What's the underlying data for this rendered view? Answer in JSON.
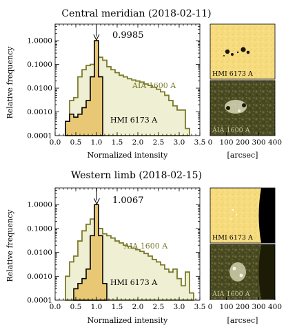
{
  "chart_data": [
    {
      "type": "histogram",
      "title": "Central meridian (2018-02-11)",
      "xlabel": "Normalized intensity",
      "ylabel": "Relative frequency",
      "xlim": [
        0.0,
        3.5
      ],
      "ylim": [
        0.0001,
        5
      ],
      "yscale": "log",
      "xticks": [
        "0.0",
        "0.5",
        "1.0",
        "1.5",
        "2.0",
        "2.5",
        "3.0",
        "3.5"
      ],
      "yticks": [
        "0.0001",
        "0.0010",
        "0.0100",
        "0.1000",
        "1.0000"
      ],
      "annotation": "0.9985",
      "arrow_x": 0.9985,
      "series": [
        {
          "name": "AIA 1600 A",
          "color": "#7a7a2a",
          "fill": "#efefd4",
          "bins": [
            [
              0.25,
              0.35,
              0.0002
            ],
            [
              0.35,
              0.45,
              0.003
            ],
            [
              0.45,
              0.55,
              0.004
            ],
            [
              0.55,
              0.65,
              0.03
            ],
            [
              0.65,
              0.75,
              0.06
            ],
            [
              0.75,
              0.85,
              0.09
            ],
            [
              0.85,
              0.95,
              0.1
            ],
            [
              0.95,
              1.05,
              0.16
            ],
            [
              1.05,
              1.15,
              0.2
            ],
            [
              1.15,
              1.25,
              0.15
            ],
            [
              1.25,
              1.35,
              0.08
            ],
            [
              1.35,
              1.45,
              0.06
            ],
            [
              1.45,
              1.55,
              0.045
            ],
            [
              1.55,
              1.65,
              0.035
            ],
            [
              1.65,
              1.75,
              0.03
            ],
            [
              1.75,
              1.85,
              0.025
            ],
            [
              1.85,
              1.95,
              0.022
            ],
            [
              1.95,
              2.05,
              0.02
            ],
            [
              2.05,
              2.15,
              0.018
            ],
            [
              2.15,
              2.25,
              0.015
            ],
            [
              2.25,
              2.35,
              0.013
            ],
            [
              2.35,
              2.45,
              0.011
            ],
            [
              2.45,
              2.55,
              0.009
            ],
            [
              2.55,
              2.65,
              0.007
            ],
            [
              2.65,
              2.75,
              0.005
            ],
            [
              2.75,
              2.85,
              0.003
            ],
            [
              2.85,
              2.95,
              0.0018
            ],
            [
              2.95,
              3.05,
              0.0012
            ],
            [
              3.05,
              3.15,
              0.0012
            ],
            [
              3.15,
              3.25,
              0.0002
            ]
          ]
        },
        {
          "name": "HMI 6173 A",
          "color": "#000000",
          "fill": "#e8c874",
          "bins": [
            [
              0.25,
              0.35,
              0.0004
            ],
            [
              0.35,
              0.45,
              0.0008
            ],
            [
              0.45,
              0.55,
              0.0006
            ],
            [
              0.55,
              0.65,
              0.0008
            ],
            [
              0.65,
              0.75,
              0.0015
            ],
            [
              0.75,
              0.85,
              0.003
            ],
            [
              0.85,
              0.95,
              0.03
            ],
            [
              0.95,
              1.05,
              1.0
            ],
            [
              1.05,
              1.15,
              0.03
            ]
          ]
        }
      ]
    },
    {
      "type": "histogram",
      "title": "Western limb (2018-02-15)",
      "xlabel": "Normalized intensity",
      "ylabel": "Relative frequency",
      "xlim": [
        0.0,
        3.5
      ],
      "ylim": [
        0.0001,
        5
      ],
      "yscale": "log",
      "xticks": [
        "0.0",
        "0.5",
        "1.0",
        "1.5",
        "2.0",
        "2.5",
        "3.0",
        "3.5"
      ],
      "yticks": [
        "0.0001",
        "0.0010",
        "0.0100",
        "0.1000",
        "1.0000"
      ],
      "annotation": "1.0067",
      "arrow_x": 1.0067,
      "series": [
        {
          "name": "AIA 1600 A",
          "color": "#7a7a2a",
          "fill": "#efefd4",
          "bins": [
            [
              0.25,
              0.35,
              0.001
            ],
            [
              0.35,
              0.45,
              0.004
            ],
            [
              0.45,
              0.55,
              0.007
            ],
            [
              0.55,
              0.65,
              0.03
            ],
            [
              0.65,
              0.75,
              0.08
            ],
            [
              0.75,
              0.85,
              0.15
            ],
            [
              0.85,
              0.95,
              0.25
            ],
            [
              0.95,
              1.05,
              0.18
            ],
            [
              1.05,
              1.15,
              0.1
            ],
            [
              1.15,
              1.25,
              0.06
            ],
            [
              1.25,
              1.35,
              0.05
            ],
            [
              1.35,
              1.45,
              0.04
            ],
            [
              1.45,
              1.55,
              0.03
            ],
            [
              1.55,
              1.65,
              0.025
            ],
            [
              1.65,
              1.75,
              0.02
            ],
            [
              1.75,
              1.85,
              0.018
            ],
            [
              1.85,
              1.95,
              0.015
            ],
            [
              1.95,
              2.05,
              0.013
            ],
            [
              2.05,
              2.15,
              0.011
            ],
            [
              2.15,
              2.25,
              0.009
            ],
            [
              2.25,
              2.35,
              0.007
            ],
            [
              2.35,
              2.45,
              0.005
            ],
            [
              2.45,
              2.55,
              0.004
            ],
            [
              2.55,
              2.65,
              0.003
            ],
            [
              2.65,
              2.75,
              0.002
            ],
            [
              2.75,
              2.85,
              0.0015
            ],
            [
              2.85,
              2.95,
              0.002
            ],
            [
              2.95,
              3.05,
              0.0008
            ],
            [
              3.05,
              3.15,
              0.0004
            ],
            [
              3.15,
              3.25,
              0.0015
            ],
            [
              3.25,
              3.35,
              0.0002
            ]
          ]
        },
        {
          "name": "HMI 6173 A",
          "color": "#000000",
          "fill": "#e8c874",
          "bins": [
            [
              0.45,
              0.55,
              0.0003
            ],
            [
              0.55,
              0.65,
              0.0005
            ],
            [
              0.65,
              0.75,
              0.0008
            ],
            [
              0.75,
              0.85,
              0.002
            ],
            [
              0.85,
              0.95,
              0.05
            ],
            [
              0.95,
              1.05,
              1.0
            ],
            [
              1.05,
              1.15,
              0.05
            ],
            [
              1.15,
              1.25,
              0.0005
            ]
          ]
        }
      ]
    }
  ],
  "images": {
    "xticks": [
      "0",
      "100",
      "200",
      "300",
      "400"
    ],
    "xlabel": "[arcsec]",
    "panel_labels": [
      "HMI 6173 A",
      "AIA 1600 A"
    ]
  }
}
